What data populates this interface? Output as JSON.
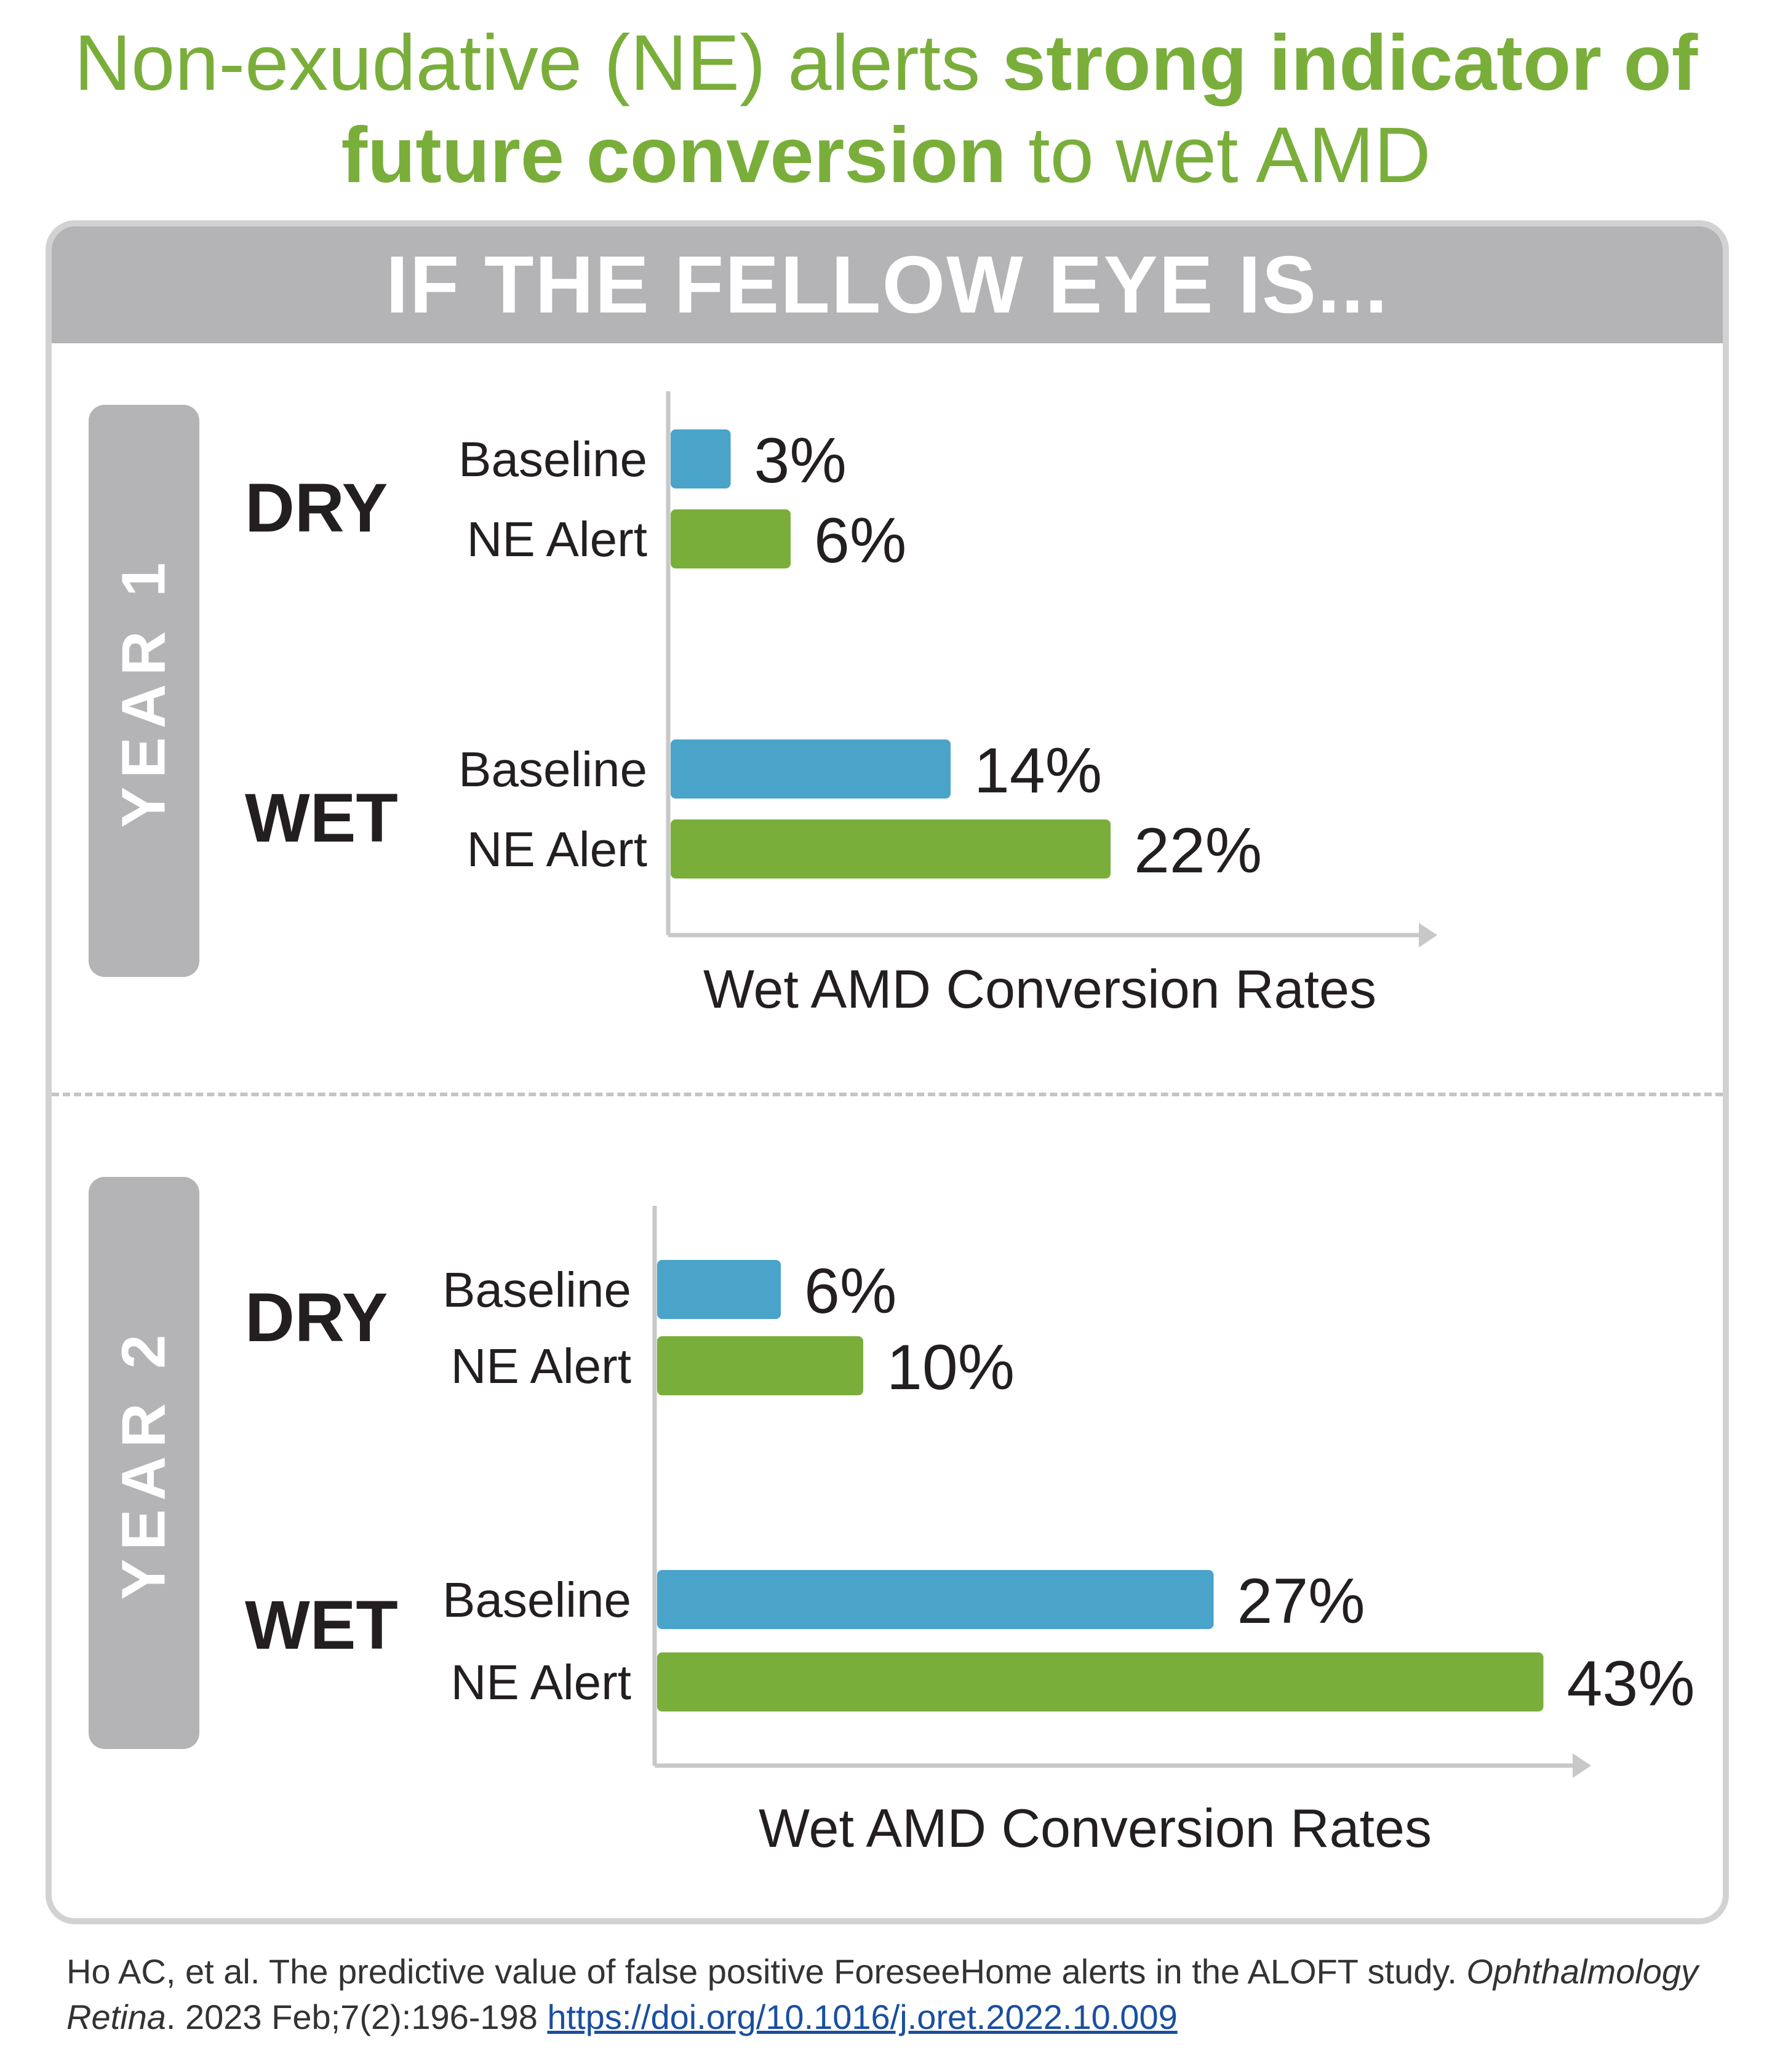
{
  "title": {
    "part1": "Non-exudative (NE) alerts ",
    "bold1": "strong indicator of",
    "bold2": "future conversion",
    "part2": " to wet AMD"
  },
  "header": "IF THE FELLOW EYE IS...",
  "colors": {
    "baseline": "#4aa3c8",
    "ne_alert": "#7aae3b",
    "title": "#7aae3b",
    "tab": "#b4b4b6"
  },
  "chart_data": [
    {
      "type": "bar",
      "orientation": "horizontal",
      "panel": "YEAR 1",
      "xlabel": "Wet AMD Conversion Rates",
      "unit": "%",
      "groups": [
        {
          "name": "DRY",
          "bars": [
            {
              "label": "Baseline",
              "value": 3
            },
            {
              "label": "NE Alert",
              "value": 6
            }
          ]
        },
        {
          "name": "WET",
          "bars": [
            {
              "label": "Baseline",
              "value": 14
            },
            {
              "label": "NE Alert",
              "value": 22
            }
          ]
        }
      ]
    },
    {
      "type": "bar",
      "orientation": "horizontal",
      "panel": "YEAR 2",
      "xlabel": "Wet AMD Conversion Rates",
      "unit": "%",
      "groups": [
        {
          "name": "DRY",
          "bars": [
            {
              "label": "Baseline",
              "value": 6
            },
            {
              "label": "NE Alert",
              "value": 10
            }
          ]
        },
        {
          "name": "WET",
          "bars": [
            {
              "label": "Baseline",
              "value": 27
            },
            {
              "label": "NE Alert",
              "value": 43
            }
          ]
        }
      ]
    }
  ],
  "citation": {
    "text": "Ho AC, et al. The predictive value of false positive ForeseeHome alerts in the ALOFT study. ",
    "journal": "Ophthalmology Retina",
    "details": ". 2023 Feb;7(2):196-198 ",
    "link": "https://doi.org/10.1016/j.oret.2022.10.009"
  }
}
